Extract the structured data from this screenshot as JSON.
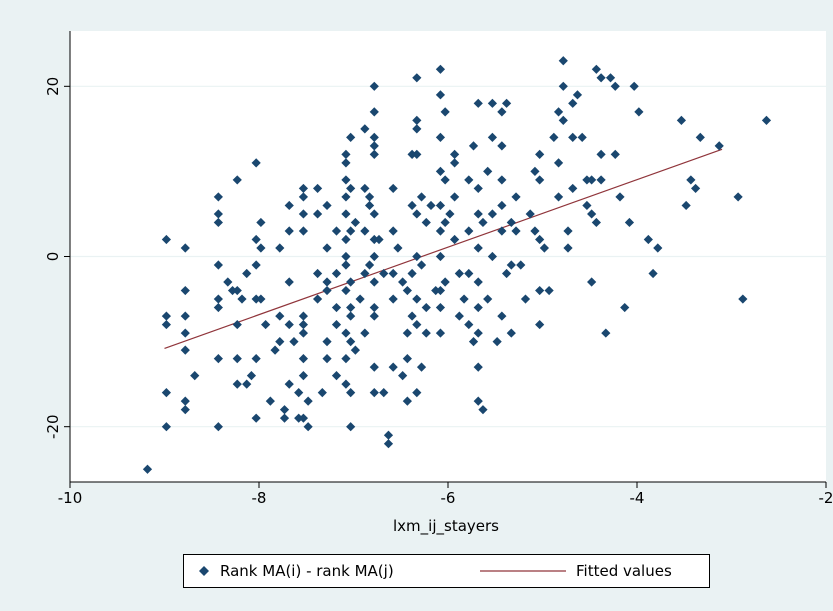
{
  "chart_data": {
    "type": "scatter",
    "xlabel": "lxm_ij_stayers",
    "ylabel": "",
    "xlim": [
      -10,
      -2
    ],
    "ylim": [
      -26.5,
      26.5
    ],
    "x_ticks": [
      -10,
      -8,
      -6,
      -4,
      -2
    ],
    "y_ticks": [
      -20,
      0,
      20
    ],
    "x_tick_labels": [
      "-10",
      "-8",
      "-6",
      "-4",
      "-2"
    ],
    "y_tick_labels": [
      "-20",
      "0",
      "20"
    ],
    "grid": "horizontal",
    "legend_position": "bottom",
    "colors": {
      "marker": "#1a476f",
      "fit_line": "#90353b",
      "graph_background": "#eaf2f3",
      "plot_background": "#ffffff",
      "grid": "#eaf2f3"
    },
    "series": [
      {
        "name": "Rank MA(i) - rank MA(j)",
        "kind": "scatter",
        "points": [
          [
            -9.18,
            -25
          ],
          [
            -8.98,
            2
          ],
          [
            -8.98,
            -7
          ],
          [
            -8.98,
            -8
          ],
          [
            -8.98,
            -16
          ],
          [
            -8.98,
            -20
          ],
          [
            -8.78,
            1
          ],
          [
            -8.78,
            -4
          ],
          [
            -8.78,
            -7
          ],
          [
            -8.78,
            -9
          ],
          [
            -8.78,
            -11
          ],
          [
            -8.78,
            -17
          ],
          [
            -8.78,
            -18
          ],
          [
            -8.68,
            -14
          ],
          [
            -8.43,
            7
          ],
          [
            -8.43,
            5
          ],
          [
            -8.43,
            4
          ],
          [
            -8.43,
            -1
          ],
          [
            -8.43,
            -5
          ],
          [
            -8.43,
            -6
          ],
          [
            -8.43,
            -12
          ],
          [
            -8.43,
            -20
          ],
          [
            -8.33,
            -3
          ],
          [
            -8.28,
            -4
          ],
          [
            -8.23,
            9
          ],
          [
            -8.23,
            -4
          ],
          [
            -8.23,
            -8
          ],
          [
            -8.23,
            -12
          ],
          [
            -8.23,
            -15
          ],
          [
            -8.18,
            -5
          ],
          [
            -8.13,
            -2
          ],
          [
            -8.13,
            -15
          ],
          [
            -8.08,
            -14
          ],
          [
            -8.03,
            11
          ],
          [
            -8.03,
            2
          ],
          [
            -8.03,
            -1
          ],
          [
            -8.03,
            -5
          ],
          [
            -8.03,
            -12
          ],
          [
            -8.03,
            -19
          ],
          [
            -7.98,
            4
          ],
          [
            -7.98,
            1
          ],
          [
            -7.98,
            -5
          ],
          [
            -7.93,
            -8
          ],
          [
            -7.88,
            -17
          ],
          [
            -7.83,
            -11
          ],
          [
            -7.78,
            1
          ],
          [
            -7.78,
            -7
          ],
          [
            -7.78,
            -10
          ],
          [
            -7.73,
            -18
          ],
          [
            -7.73,
            -19
          ],
          [
            -7.68,
            6
          ],
          [
            -7.68,
            3
          ],
          [
            -7.68,
            -3
          ],
          [
            -7.68,
            -8
          ],
          [
            -7.68,
            -15
          ],
          [
            -7.63,
            -10
          ],
          [
            -7.58,
            -16
          ],
          [
            -7.58,
            -19
          ],
          [
            -7.53,
            8
          ],
          [
            -7.53,
            7
          ],
          [
            -7.53,
            5
          ],
          [
            -7.53,
            3
          ],
          [
            -7.53,
            -7
          ],
          [
            -7.53,
            -8
          ],
          [
            -7.53,
            -9
          ],
          [
            -7.53,
            -12
          ],
          [
            -7.53,
            -14
          ],
          [
            -7.53,
            -19
          ],
          [
            -7.48,
            -17
          ],
          [
            -7.48,
            -20
          ],
          [
            -7.38,
            8
          ],
          [
            -7.38,
            5
          ],
          [
            -7.38,
            -2
          ],
          [
            -7.38,
            -5
          ],
          [
            -7.33,
            -16
          ],
          [
            -7.28,
            6
          ],
          [
            -7.28,
            1
          ],
          [
            -7.28,
            -3
          ],
          [
            -7.28,
            -4
          ],
          [
            -7.28,
            -10
          ],
          [
            -7.28,
            -12
          ],
          [
            -7.18,
            3
          ],
          [
            -7.18,
            -2
          ],
          [
            -7.18,
            -6
          ],
          [
            -7.18,
            -8
          ],
          [
            -7.18,
            -14
          ],
          [
            -7.08,
            12
          ],
          [
            -7.08,
            11
          ],
          [
            -7.08,
            9
          ],
          [
            -7.08,
            7
          ],
          [
            -7.08,
            5
          ],
          [
            -7.08,
            2
          ],
          [
            -7.08,
            0
          ],
          [
            -7.08,
            -1
          ],
          [
            -7.08,
            -4
          ],
          [
            -7.08,
            -9
          ],
          [
            -7.08,
            -12
          ],
          [
            -7.08,
            -15
          ],
          [
            -7.03,
            14
          ],
          [
            -7.03,
            8
          ],
          [
            -7.03,
            3
          ],
          [
            -7.03,
            -3
          ],
          [
            -7.03,
            -6
          ],
          [
            -7.03,
            -7
          ],
          [
            -7.03,
            -10
          ],
          [
            -7.03,
            -16
          ],
          [
            -7.03,
            -20
          ],
          [
            -6.98,
            4
          ],
          [
            -6.98,
            -11
          ],
          [
            -6.93,
            -5
          ],
          [
            -6.88,
            15
          ],
          [
            -6.88,
            8
          ],
          [
            -6.88,
            3
          ],
          [
            -6.88,
            -2
          ],
          [
            -6.88,
            -9
          ],
          [
            -6.83,
            7
          ],
          [
            -6.83,
            6
          ],
          [
            -6.83,
            -1
          ],
          [
            -6.78,
            20
          ],
          [
            -6.78,
            17
          ],
          [
            -6.78,
            14
          ],
          [
            -6.78,
            13
          ],
          [
            -6.78,
            12
          ],
          [
            -6.78,
            5
          ],
          [
            -6.78,
            2
          ],
          [
            -6.78,
            0
          ],
          [
            -6.78,
            -3
          ],
          [
            -6.78,
            -6
          ],
          [
            -6.78,
            -7
          ],
          [
            -6.78,
            -13
          ],
          [
            -6.78,
            -16
          ],
          [
            -6.73,
            2
          ],
          [
            -6.68,
            -2
          ],
          [
            -6.68,
            -16
          ],
          [
            -6.63,
            -21
          ],
          [
            -6.63,
            -22
          ],
          [
            -6.58,
            8
          ],
          [
            -6.58,
            3
          ],
          [
            -6.58,
            -2
          ],
          [
            -6.58,
            -5
          ],
          [
            -6.58,
            -13
          ],
          [
            -6.53,
            1
          ],
          [
            -6.48,
            -3
          ],
          [
            -6.48,
            -14
          ],
          [
            -6.43,
            -4
          ],
          [
            -6.43,
            -9
          ],
          [
            -6.43,
            -12
          ],
          [
            -6.43,
            -17
          ],
          [
            -6.38,
            12
          ],
          [
            -6.38,
            6
          ],
          [
            -6.38,
            -2
          ],
          [
            -6.38,
            -7
          ],
          [
            -6.33,
            21
          ],
          [
            -6.33,
            16
          ],
          [
            -6.33,
            15
          ],
          [
            -6.33,
            12
          ],
          [
            -6.33,
            5
          ],
          [
            -6.33,
            0
          ],
          [
            -6.33,
            -5
          ],
          [
            -6.33,
            -8
          ],
          [
            -6.33,
            -16
          ],
          [
            -6.28,
            7
          ],
          [
            -6.28,
            -1
          ],
          [
            -6.28,
            -13
          ],
          [
            -6.23,
            4
          ],
          [
            -6.23,
            -6
          ],
          [
            -6.23,
            -9
          ],
          [
            -6.18,
            6
          ],
          [
            -6.13,
            -4
          ],
          [
            -6.08,
            22
          ],
          [
            -6.08,
            19
          ],
          [
            -6.08,
            14
          ],
          [
            -6.08,
            10
          ],
          [
            -6.08,
            6
          ],
          [
            -6.08,
            3
          ],
          [
            -6.08,
            0
          ],
          [
            -6.08,
            -4
          ],
          [
            -6.08,
            -6
          ],
          [
            -6.08,
            -9
          ],
          [
            -6.03,
            17
          ],
          [
            -6.03,
            9
          ],
          [
            -6.03,
            4
          ],
          [
            -6.03,
            -3
          ],
          [
            -5.98,
            5
          ],
          [
            -5.93,
            12
          ],
          [
            -5.93,
            11
          ],
          [
            -5.93,
            7
          ],
          [
            -5.93,
            2
          ],
          [
            -5.88,
            -2
          ],
          [
            -5.88,
            -7
          ],
          [
            -5.83,
            -5
          ],
          [
            -5.78,
            9
          ],
          [
            -5.78,
            3
          ],
          [
            -5.78,
            -2
          ],
          [
            -5.78,
            -8
          ],
          [
            -5.73,
            13
          ],
          [
            -5.73,
            -10
          ],
          [
            -5.68,
            18
          ],
          [
            -5.68,
            8
          ],
          [
            -5.68,
            5
          ],
          [
            -5.68,
            1
          ],
          [
            -5.68,
            -3
          ],
          [
            -5.68,
            -6
          ],
          [
            -5.68,
            -9
          ],
          [
            -5.68,
            -13
          ],
          [
            -5.68,
            -17
          ],
          [
            -5.63,
            4
          ],
          [
            -5.63,
            -18
          ],
          [
            -5.58,
            10
          ],
          [
            -5.58,
            -5
          ],
          [
            -5.53,
            18
          ],
          [
            -5.53,
            14
          ],
          [
            -5.53,
            5
          ],
          [
            -5.53,
            0
          ],
          [
            -5.48,
            -10
          ],
          [
            -5.43,
            17
          ],
          [
            -5.43,
            13
          ],
          [
            -5.43,
            9
          ],
          [
            -5.43,
            6
          ],
          [
            -5.43,
            3
          ],
          [
            -5.43,
            -7
          ],
          [
            -5.38,
            18
          ],
          [
            -5.38,
            -2
          ],
          [
            -5.33,
            4
          ],
          [
            -5.33,
            -1
          ],
          [
            -5.33,
            -9
          ],
          [
            -5.28,
            7
          ],
          [
            -5.28,
            3
          ],
          [
            -5.23,
            -1
          ],
          [
            -5.18,
            -5
          ],
          [
            -5.13,
            5
          ],
          [
            -5.08,
            10
          ],
          [
            -5.08,
            3
          ],
          [
            -5.03,
            12
          ],
          [
            -5.03,
            9
          ],
          [
            -5.03,
            2
          ],
          [
            -5.03,
            -4
          ],
          [
            -5.03,
            -8
          ],
          [
            -4.98,
            1
          ],
          [
            -4.93,
            -4
          ],
          [
            -4.88,
            14
          ],
          [
            -4.83,
            17
          ],
          [
            -4.83,
            11
          ],
          [
            -4.83,
            7
          ],
          [
            -4.78,
            23
          ],
          [
            -4.78,
            20
          ],
          [
            -4.78,
            16
          ],
          [
            -4.73,
            3
          ],
          [
            -4.73,
            1
          ],
          [
            -4.68,
            18
          ],
          [
            -4.68,
            14
          ],
          [
            -4.68,
            8
          ],
          [
            -4.63,
            19
          ],
          [
            -4.58,
            14
          ],
          [
            -4.53,
            9
          ],
          [
            -4.53,
            6
          ],
          [
            -4.48,
            9
          ],
          [
            -4.48,
            5
          ],
          [
            -4.48,
            -3
          ],
          [
            -4.43,
            22
          ],
          [
            -4.43,
            4
          ],
          [
            -4.38,
            21
          ],
          [
            -4.38,
            12
          ],
          [
            -4.38,
            9
          ],
          [
            -4.33,
            -9
          ],
          [
            -4.28,
            21
          ],
          [
            -4.23,
            20
          ],
          [
            -4.23,
            12
          ],
          [
            -4.18,
            7
          ],
          [
            -4.13,
            -6
          ],
          [
            -4.08,
            4
          ],
          [
            -4.03,
            20
          ],
          [
            -3.98,
            17
          ],
          [
            -3.88,
            2
          ],
          [
            -3.83,
            -2
          ],
          [
            -3.78,
            1
          ],
          [
            -3.53,
            16
          ],
          [
            -3.48,
            6
          ],
          [
            -3.43,
            9
          ],
          [
            -3.38,
            8
          ],
          [
            -3.33,
            14
          ],
          [
            -3.13,
            13
          ],
          [
            -2.93,
            7
          ],
          [
            -2.88,
            -5
          ],
          [
            -2.63,
            16
          ]
        ]
      },
      {
        "name": "Fitted values",
        "kind": "line",
        "points": [
          [
            -9.0,
            -10.8
          ],
          [
            -3.1,
            12.6
          ]
        ]
      }
    ]
  }
}
